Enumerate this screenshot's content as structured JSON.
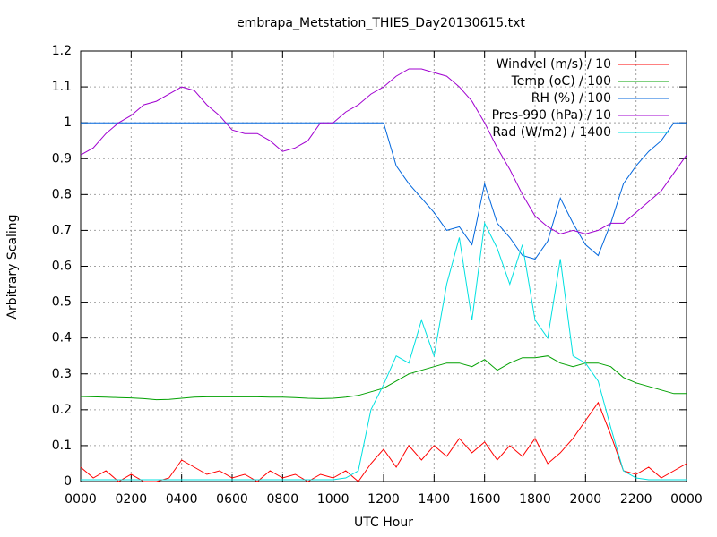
{
  "chart_data": {
    "type": "line",
    "title": "embrapa_Metstation_THIES_Day20130615.txt",
    "x_label": "UTC Hour",
    "y_label": "Arbitrary Scaling",
    "x": [
      0,
      0.5,
      1,
      1.5,
      2,
      2.5,
      3,
      3.5,
      4,
      4.5,
      5,
      5.5,
      6,
      6.5,
      7,
      7.5,
      8,
      8.5,
      9,
      9.5,
      10,
      10.5,
      11,
      11.5,
      12,
      12.5,
      13,
      13.5,
      14,
      14.5,
      15,
      15.5,
      16,
      16.5,
      17,
      17.5,
      18,
      18.5,
      19,
      19.5,
      20,
      20.5,
      21,
      21.5,
      22,
      22.5,
      23,
      23.5,
      24
    ],
    "series": [
      {
        "name": "Windvel (m/s) / 10",
        "color": "#ff0000",
        "values": [
          0.04,
          0.01,
          0.03,
          0.0,
          0.02,
          0.0,
          0.0,
          0.01,
          0.06,
          0.04,
          0.02,
          0.03,
          0.01,
          0.02,
          0.0,
          0.03,
          0.01,
          0.02,
          0.0,
          0.02,
          0.01,
          0.03,
          0.0,
          0.05,
          0.09,
          0.04,
          0.1,
          0.06,
          0.1,
          0.07,
          0.12,
          0.08,
          0.11,
          0.06,
          0.1,
          0.07,
          0.12,
          0.05,
          0.08,
          0.12,
          0.17,
          0.22,
          0.13,
          0.03,
          0.02,
          0.04,
          0.01,
          0.03,
          0.05
        ]
      },
      {
        "name": "Temp (oC) / 100",
        "color": "#00a000",
        "values": [
          0.237,
          0.236,
          0.235,
          0.234,
          0.233,
          0.231,
          0.228,
          0.229,
          0.232,
          0.235,
          0.236,
          0.236,
          0.236,
          0.236,
          0.236,
          0.235,
          0.235,
          0.234,
          0.232,
          0.231,
          0.232,
          0.235,
          0.24,
          0.25,
          0.26,
          0.28,
          0.3,
          0.31,
          0.32,
          0.33,
          0.33,
          0.32,
          0.34,
          0.31,
          0.33,
          0.345,
          0.345,
          0.35,
          0.33,
          0.32,
          0.33,
          0.33,
          0.32,
          0.29,
          0.275,
          0.265,
          0.255,
          0.245,
          0.245
        ]
      },
      {
        "name": "RH (%) / 100",
        "color": "#0066dd",
        "values": [
          1,
          1,
          1,
          1,
          1,
          1,
          1,
          1,
          1,
          1,
          1,
          1,
          1,
          1,
          1,
          1,
          1,
          1,
          1,
          1,
          1,
          1,
          1,
          1,
          1,
          0.88,
          0.83,
          0.79,
          0.75,
          0.7,
          0.71,
          0.66,
          0.83,
          0.72,
          0.68,
          0.63,
          0.62,
          0.67,
          0.79,
          0.72,
          0.66,
          0.63,
          0.72,
          0.83,
          0.88,
          0.92,
          0.95,
          1,
          1
        ]
      },
      {
        "name": "Pres-990 (hPa) / 10",
        "color": "#a000d0",
        "values": [
          0.91,
          0.93,
          0.97,
          1.0,
          1.02,
          1.05,
          1.06,
          1.08,
          1.1,
          1.09,
          1.05,
          1.02,
          0.98,
          0.97,
          0.97,
          0.95,
          0.92,
          0.93,
          0.95,
          1.0,
          1.0,
          1.03,
          1.05,
          1.08,
          1.1,
          1.13,
          1.15,
          1.15,
          1.14,
          1.13,
          1.1,
          1.06,
          1.0,
          0.93,
          0.87,
          0.8,
          0.74,
          0.71,
          0.69,
          0.7,
          0.69,
          0.7,
          0.72,
          0.72,
          0.75,
          0.78,
          0.81,
          0.86,
          0.91
        ]
      },
      {
        "name": "Rad (W/m2) / 1400",
        "color": "#00e0e0",
        "values": [
          0.005,
          0.005,
          0.005,
          0.005,
          0.005,
          0.005,
          0.005,
          0.005,
          0.005,
          0.005,
          0.005,
          0.005,
          0.005,
          0.005,
          0.005,
          0.005,
          0.005,
          0.005,
          0.005,
          0.005,
          0.005,
          0.01,
          0.03,
          0.2,
          0.27,
          0.35,
          0.33,
          0.45,
          0.35,
          0.55,
          0.68,
          0.45,
          0.72,
          0.65,
          0.55,
          0.66,
          0.45,
          0.4,
          0.62,
          0.35,
          0.33,
          0.28,
          0.15,
          0.03,
          0.01,
          0.005,
          0.005,
          0.005,
          0.005
        ]
      }
    ],
    "xlim": [
      0,
      24
    ],
    "xticks": [
      {
        "value": 0,
        "label": "0000"
      },
      {
        "value": 2,
        "label": "0200"
      },
      {
        "value": 4,
        "label": "0400"
      },
      {
        "value": 6,
        "label": "0600"
      },
      {
        "value": 8,
        "label": "0800"
      },
      {
        "value": 10,
        "label": "1000"
      },
      {
        "value": 12,
        "label": "1200"
      },
      {
        "value": 14,
        "label": "1400"
      },
      {
        "value": 16,
        "label": "1600"
      },
      {
        "value": 18,
        "label": "1800"
      },
      {
        "value": 20,
        "label": "2000"
      },
      {
        "value": 22,
        "label": "2200"
      },
      {
        "value": 24,
        "label": "0000"
      }
    ],
    "ylim": [
      0,
      1.2
    ],
    "yticks": [
      0,
      0.1,
      0.2,
      0.3,
      0.4,
      0.5,
      0.6,
      0.7,
      0.8,
      0.9,
      1,
      1.1,
      1.2
    ],
    "grid": true,
    "legend": "top-right"
  }
}
